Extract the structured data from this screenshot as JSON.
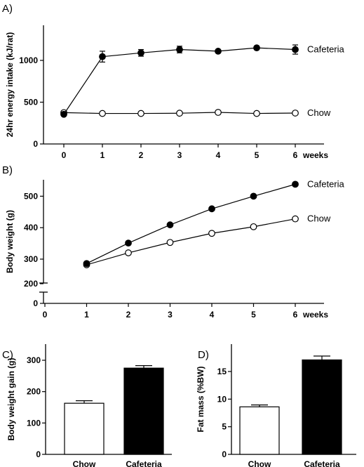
{
  "chart_data": [
    {
      "panel": "A)",
      "type": "line",
      "xlabel": "weeks",
      "ylabel": "24hr energy intake (kJ/rat)",
      "x": [
        0,
        1,
        2,
        3,
        4,
        5,
        6
      ],
      "xticks": [
        "0",
        "1",
        "2",
        "3",
        "4",
        "5",
        "6"
      ],
      "yticks": [
        0,
        500,
        1000
      ],
      "xlim": [
        -0.6,
        6.5
      ],
      "ylim": [
        0,
        1400
      ],
      "series": [
        {
          "name": "Cafeteria",
          "marker": "filled",
          "values": [
            355,
            1045,
            1090,
            1130,
            1110,
            1150,
            1130
          ],
          "errors": [
            20,
            65,
            40,
            40,
            35,
            35,
            55
          ]
        },
        {
          "name": "Chow",
          "marker": "open",
          "values": [
            375,
            365,
            365,
            368,
            378,
            365,
            370
          ],
          "errors": [
            10,
            10,
            8,
            8,
            10,
            8,
            8
          ]
        }
      ]
    },
    {
      "panel": "B)",
      "type": "line",
      "xlabel": "weeks",
      "ylabel": "Body weight (g)",
      "x": [
        1,
        2,
        3,
        4,
        5,
        6
      ],
      "xticks": [
        "0",
        "1",
        "2",
        "3",
        "4",
        "5",
        "6"
      ],
      "yticks": [
        0,
        200,
        300,
        400,
        500
      ],
      "y_axis_break": true,
      "xlim": [
        -0.1,
        6.5
      ],
      "ylim": [
        0,
        550
      ],
      "series": [
        {
          "name": "Cafeteria",
          "marker": "filled",
          "values": [
            286,
            351,
            409,
            460,
            500,
            538
          ],
          "errors": [
            4,
            4,
            5,
            6,
            10,
            10
          ]
        },
        {
          "name": "Chow",
          "marker": "open",
          "values": [
            282,
            320,
            353,
            382,
            403,
            428
          ],
          "errors": [
            3,
            3,
            4,
            4,
            4,
            5
          ]
        }
      ]
    },
    {
      "panel": "C)",
      "type": "bar",
      "ylabel": "Body weight gain (g)",
      "categories": [
        "Chow",
        "Cafeteria"
      ],
      "values": [
        163,
        275
      ],
      "errors": [
        8,
        8
      ],
      "bar_colors": [
        "#ffffff",
        "#000000"
      ],
      "yticks": [
        0,
        100,
        200,
        300
      ],
      "ylim": [
        0,
        330
      ]
    },
    {
      "panel": "D)",
      "type": "bar",
      "ylabel": "Fat mass (%BW)",
      "categories": [
        "Chow",
        "Cafeteria"
      ],
      "values": [
        8.6,
        17.1
      ],
      "errors": [
        0.35,
        0.7
      ],
      "bar_colors": [
        "#ffffff",
        "#000000"
      ],
      "yticks": [
        0,
        5,
        10,
        15
      ],
      "ylim": [
        0,
        19
      ]
    }
  ]
}
